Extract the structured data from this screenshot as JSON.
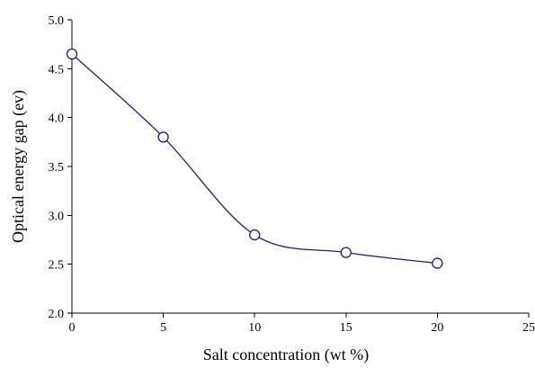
{
  "chart_data": {
    "type": "line",
    "title": "",
    "xlabel": "Salt concentration (wt %)",
    "ylabel": "Optical energy gap (ev)",
    "x": [
      0,
      5,
      10,
      15,
      20
    ],
    "series": [
      {
        "values": [
          4.65,
          3.8,
          2.8,
          2.62,
          2.51
        ]
      }
    ],
    "xlim": [
      0,
      25
    ],
    "ylim": [
      2.0,
      5.0
    ],
    "xticks": [
      "0",
      "5",
      "10",
      "15",
      "20",
      "25"
    ],
    "yticks": [
      "2.0",
      "2.5",
      "3.0",
      "3.5",
      "4.0",
      "4.5",
      "5.0"
    ],
    "smooth": true,
    "marker": "open-circle",
    "grid": false,
    "line_color": "#1f1f6b"
  }
}
